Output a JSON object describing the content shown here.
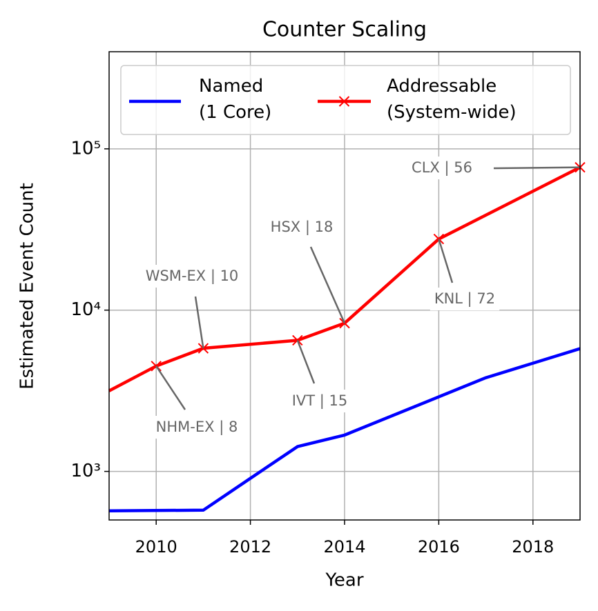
{
  "chart_data": {
    "type": "line",
    "title": "Counter Scaling",
    "x_label": "Year",
    "y_label": "Estimated Event Count",
    "log_y": true,
    "grid": true,
    "legend": "upper center",
    "xlim": [
      2009,
      2019
    ],
    "xticks": [
      2010,
      2012,
      2014,
      2016,
      2018
    ],
    "ylim": [
      500,
      400000
    ],
    "yticks": [
      {
        "value": 1000,
        "label": "10³"
      },
      {
        "value": 10000,
        "label": "10⁴"
      },
      {
        "value": 100000,
        "label": "10⁵"
      }
    ],
    "series": [
      {
        "name": "Named\n(1 Core)",
        "color": "#0000ff",
        "marker": "none",
        "x": [
          2009,
          2011,
          2012,
          2013,
          2014,
          2016,
          2017,
          2019
        ],
        "values": [
          570,
          575,
          906,
          1425,
          1680,
          2900,
          3810,
          5770
        ]
      },
      {
        "name": "Addressable\n(System-wide)",
        "color": "#ff0000",
        "marker": "x",
        "x": [
          2009,
          2010,
          2011,
          2013,
          2014,
          2016,
          2019
        ],
        "values": [
          3160,
          4500,
          5800,
          6500,
          8300,
          27600,
          76800
        ]
      }
    ],
    "annotations": [
      {
        "text": "NHM-EX | 8",
        "x": 2010
      },
      {
        "text": "WSM-EX | 10",
        "x": 2011
      },
      {
        "text": "IVT | 15",
        "x": 2013
      },
      {
        "text": "HSX | 18",
        "x": 2014
      },
      {
        "text": "KNL | 72",
        "x": 2016
      },
      {
        "text": "CLX | 56",
        "x": 2019
      }
    ]
  }
}
